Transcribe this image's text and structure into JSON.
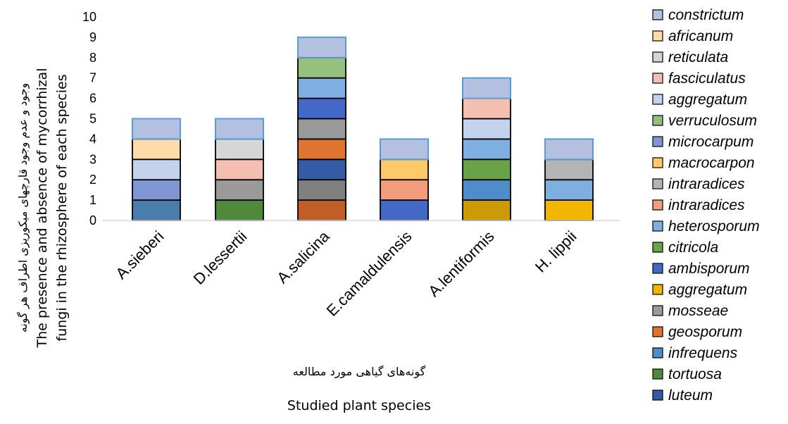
{
  "chart_data": {
    "type": "bar",
    "stacked": true,
    "categories": [
      "A.sieberi",
      "D.lessertii",
      "A.salicina",
      "E.camaldulensis",
      "A.lentiformis",
      "H. lippii"
    ],
    "ylim": [
      0,
      10
    ],
    "yticks": [
      "0",
      "1",
      "2",
      "3",
      "4",
      "5",
      "6",
      "7",
      "8",
      "9",
      "10"
    ],
    "ylabel_fa": "وجود و عدم وجود قارچهای میکوریزی اطراف هر گونه",
    "ylabel_en_1": "The presence and absence of mycorrhizal",
    "ylabel_en_2": "fungi in the rhizosphere  of each species",
    "xlabel_fa": "گونه‌های گیاهی مورد مطالعه",
    "xlabel_en": "Studied plant species",
    "grid": false,
    "legend_position": "right",
    "legend": [
      {
        "name": "constrictum",
        "color": "#b3c0e0"
      },
      {
        "name": "africanum",
        "color": "#ffdca8"
      },
      {
        "name": "reticulata",
        "color": "#d6d6d6"
      },
      {
        "name": "fasciculatus",
        "color": "#f4bfb0"
      },
      {
        "name": "aggregatum",
        "color": "#c3d3ee"
      },
      {
        "name": "verruculosum",
        "color": "#95c07d"
      },
      {
        "name": "microcarpum",
        "color": "#7f96d2"
      },
      {
        "name": "macrocarpon",
        "color": "#ffc96a"
      },
      {
        "name": "intraradices",
        "color": "#b4b4b4"
      },
      {
        "name": "intraradices",
        "color": "#f29c7c"
      },
      {
        "name": "heterosporum",
        "color": "#7faee0"
      },
      {
        "name": "citricola",
        "color": "#67a448"
      },
      {
        "name": "ambisporum",
        "color": "#4468c5"
      },
      {
        "name": "aggregatum",
        "color": "#f2b500"
      },
      {
        "name": "mosseae",
        "color": "#9a9a9a"
      },
      {
        "name": "geosporum",
        "color": "#e07532"
      },
      {
        "name": "infrequens",
        "color": "#4f8dc8"
      },
      {
        "name": "tortuosa",
        "color": "#4f8a3c"
      },
      {
        "name": "luteum",
        "color": "#335ba6"
      }
    ],
    "bars": [
      {
        "category": "A.sieberi",
        "segments": [
          {
            "value": 1,
            "color": "#4a7dac"
          },
          {
            "value": 1,
            "color": "#7f96d2"
          },
          {
            "value": 1,
            "color": "#c3d3ee"
          },
          {
            "value": 1,
            "color": "#ffdca8"
          },
          {
            "value": 1,
            "color": "#b3c0e0"
          }
        ]
      },
      {
        "category": "D.lessertii",
        "segments": [
          {
            "value": 1,
            "color": "#4f8a3c"
          },
          {
            "value": 1,
            "color": "#9a9a9a"
          },
          {
            "value": 1,
            "color": "#f4bfb0"
          },
          {
            "value": 1,
            "color": "#d6d6d6"
          },
          {
            "value": 1,
            "color": "#b3c0e0"
          }
        ]
      },
      {
        "category": "A.salicina",
        "segments": [
          {
            "value": 1,
            "color": "#bf5f27"
          },
          {
            "value": 1,
            "color": "#808080"
          },
          {
            "value": 1,
            "color": "#335ba6"
          },
          {
            "value": 1,
            "color": "#e07532"
          },
          {
            "value": 1,
            "color": "#9a9a9a"
          },
          {
            "value": 1,
            "color": "#4468c5"
          },
          {
            "value": 1,
            "color": "#7faee0"
          },
          {
            "value": 1,
            "color": "#95c07d"
          },
          {
            "value": 1,
            "color": "#b3c0e0"
          }
        ]
      },
      {
        "category": "E.camaldulensis",
        "segments": [
          {
            "value": 1,
            "color": "#4468c5"
          },
          {
            "value": 1,
            "color": "#f29c7c"
          },
          {
            "value": 1,
            "color": "#ffc96a"
          },
          {
            "value": 1,
            "color": "#b3c0e0"
          }
        ]
      },
      {
        "category": "A.lentiformis",
        "segments": [
          {
            "value": 1,
            "color": "#cc9a06"
          },
          {
            "value": 1,
            "color": "#4f8dc8"
          },
          {
            "value": 1,
            "color": "#67a448"
          },
          {
            "value": 1,
            "color": "#7faee0"
          },
          {
            "value": 1,
            "color": "#c3d3ee"
          },
          {
            "value": 1,
            "color": "#f4bfb0"
          },
          {
            "value": 1,
            "color": "#b3c0e0"
          }
        ]
      },
      {
        "category": "H. lippii",
        "segments": [
          {
            "value": 1,
            "color": "#f2b500"
          },
          {
            "value": 1,
            "color": "#7faee0"
          },
          {
            "value": 1,
            "color": "#b4b4b4"
          },
          {
            "value": 1,
            "color": "#b3c0e0"
          }
        ]
      }
    ]
  }
}
